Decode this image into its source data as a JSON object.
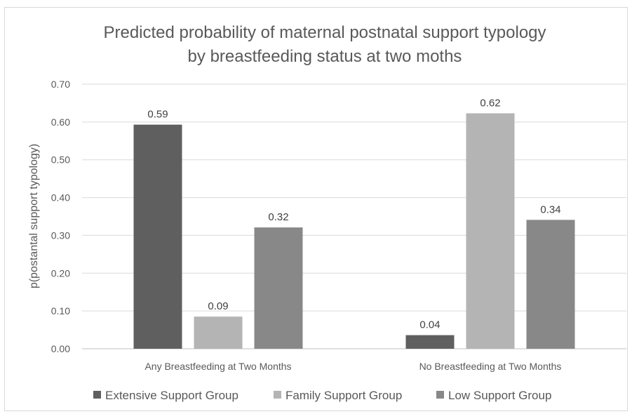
{
  "chart_data": {
    "type": "bar",
    "title": [
      "Predicted probability of maternal postnatal support typology",
      "by breastfeeding status at two moths"
    ],
    "xlabel": "",
    "ylabel": "p(postantal support typology)",
    "categories": [
      "Any Breastfeeding at Two Months",
      "No Breastfeeding at Two Months"
    ],
    "ylim": [
      0,
      0.7
    ],
    "yticks": [
      "0.00",
      "0.10",
      "0.20",
      "0.30",
      "0.40",
      "0.50",
      "0.60",
      "0.70"
    ],
    "grid": true,
    "legend_position": "bottom",
    "series": [
      {
        "name": "Extensive Support Group",
        "color": "#5f5f5f",
        "values": [
          0.593,
          0.036
        ],
        "labels": [
          "0.59",
          "0.04"
        ]
      },
      {
        "name": "Family Support Group",
        "color": "#b4b4b4",
        "values": [
          0.085,
          0.623
        ],
        "labels": [
          "0.09",
          "0.62"
        ]
      },
      {
        "name": "Low Support Group",
        "color": "#888888",
        "values": [
          0.321,
          0.341
        ],
        "labels": [
          "0.32",
          "0.34"
        ]
      }
    ]
  }
}
